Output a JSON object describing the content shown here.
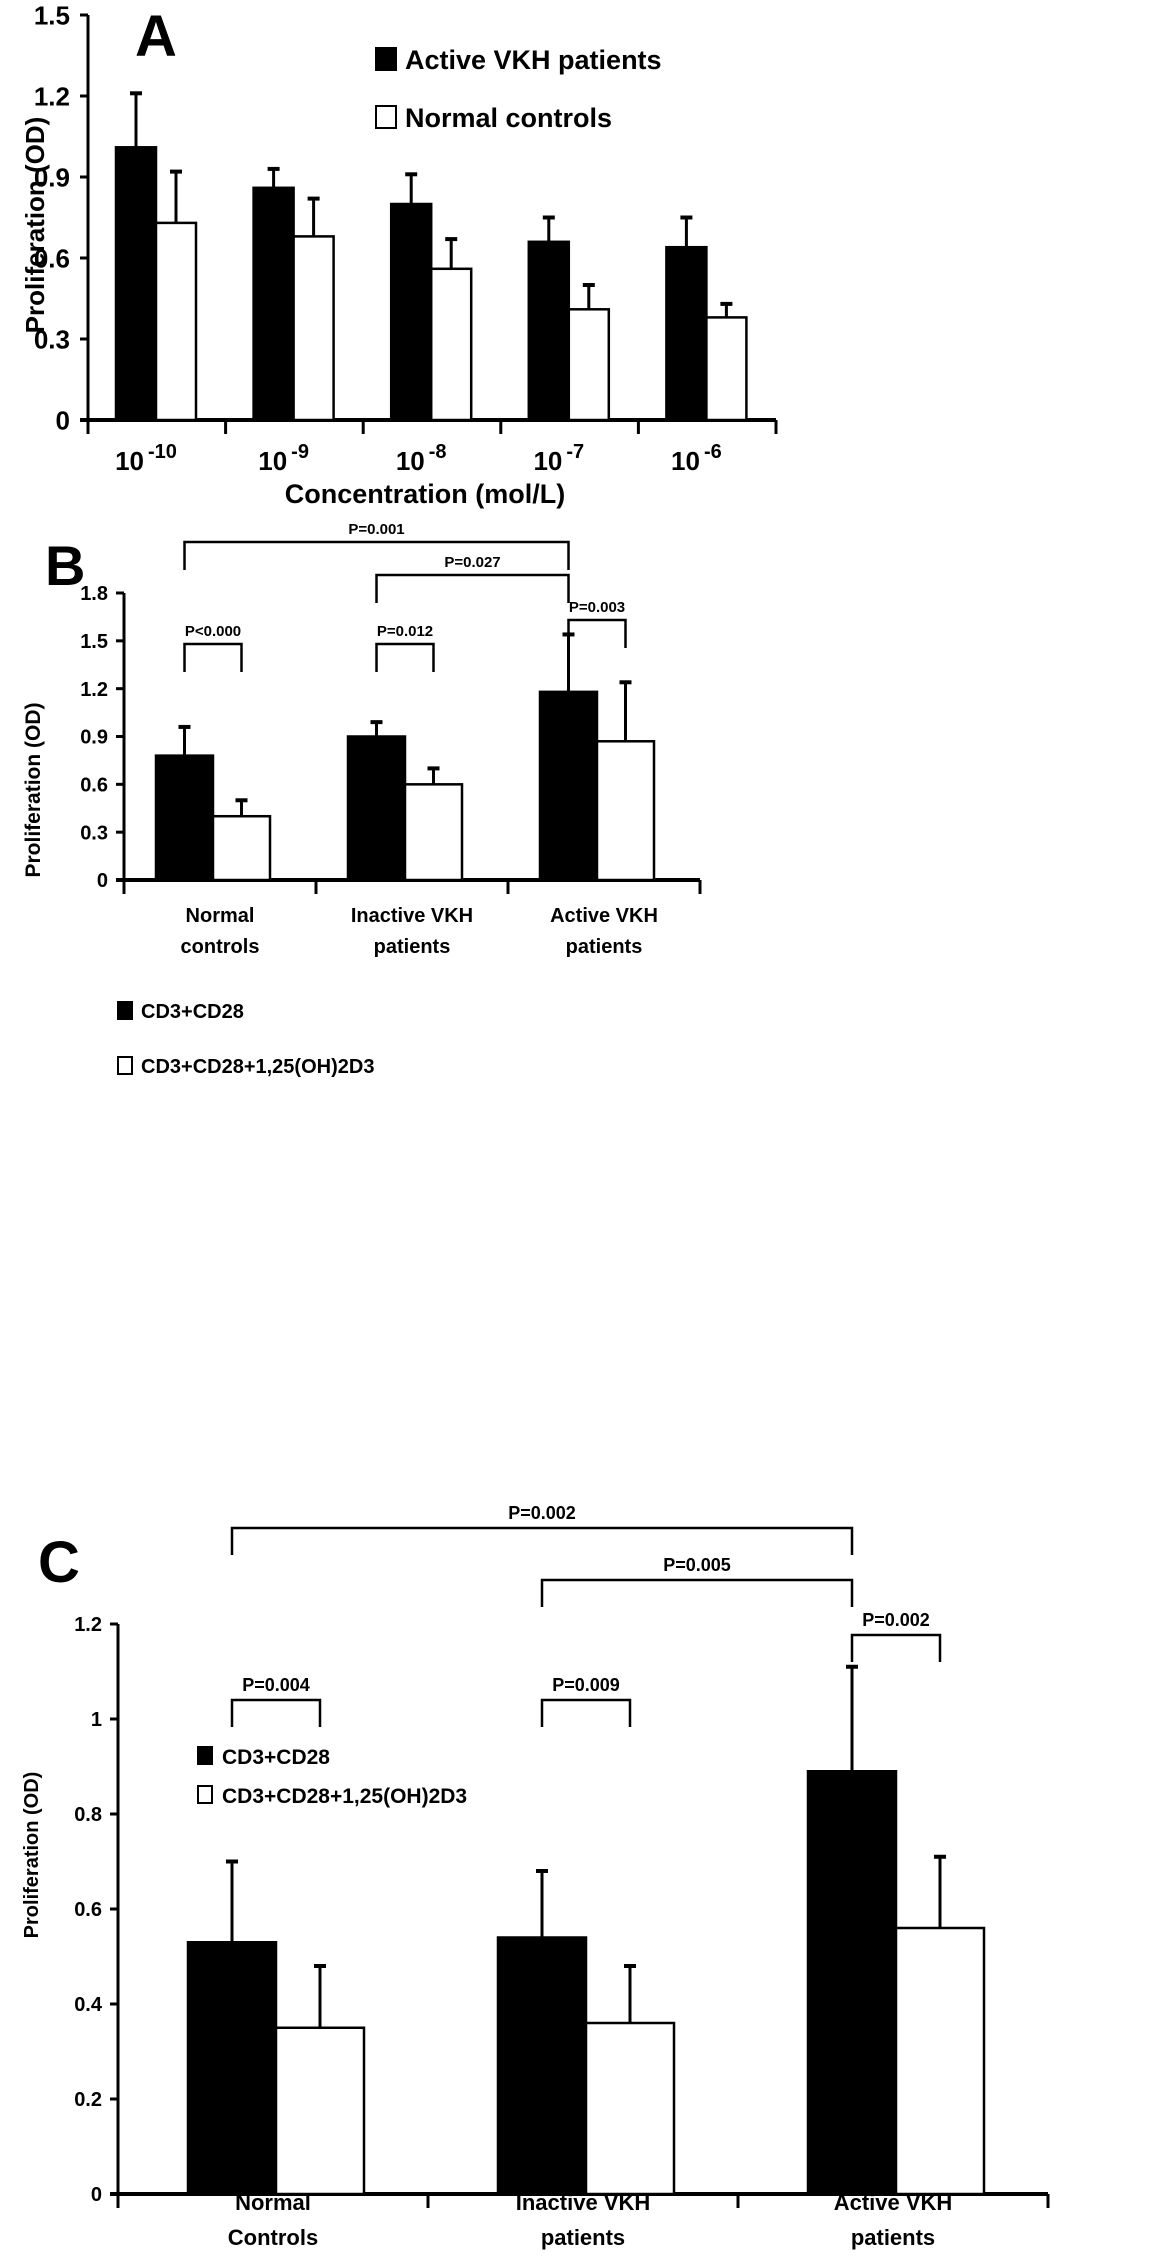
{
  "figure": {
    "panels": [
      "A",
      "B",
      "C"
    ]
  },
  "chart_data": [
    {
      "panel": "A",
      "type": "bar",
      "title": "",
      "xlabel": "Concentration (mol/L)",
      "ylabel": "Proliferation (OD)",
      "ylim": [
        0,
        1.5
      ],
      "yticks": [
        "0",
        "0.3",
        "0.6",
        "0.9",
        "1.2",
        "1.5"
      ],
      "ytick_values": [
        0,
        0.3,
        0.6,
        0.9,
        1.2,
        1.5
      ],
      "categories": [
        {
          "base": "10",
          "exp": "-10"
        },
        {
          "base": "10",
          "exp": "-9"
        },
        {
          "base": "10",
          "exp": "-8"
        },
        {
          "base": "10",
          "exp": "-7"
        },
        {
          "base": "10",
          "exp": "-6"
        }
      ],
      "series": [
        {
          "name": "Active VKH patients",
          "fill": "#000000",
          "values": [
            1.01,
            0.86,
            0.8,
            0.66,
            0.64
          ],
          "errors": [
            0.2,
            0.07,
            0.11,
            0.09,
            0.11
          ]
        },
        {
          "name": "Normal controls",
          "fill": "#ffffff",
          "values": [
            0.73,
            0.68,
            0.56,
            0.41,
            0.38
          ],
          "errors": [
            0.19,
            0.14,
            0.11,
            0.09,
            0.05
          ]
        }
      ],
      "legend_position": "top-right",
      "grid": false,
      "brackets": []
    },
    {
      "panel": "B",
      "type": "bar",
      "title": "",
      "xlabel": "",
      "ylabel": "Proliferation (OD)",
      "ylim": [
        0,
        1.8
      ],
      "yticks": [
        "0",
        "0.3",
        "0.6",
        "0.9",
        "1.2",
        "1.5",
        "1.8"
      ],
      "ytick_values": [
        0,
        0.3,
        0.6,
        0.9,
        1.2,
        1.5,
        1.8
      ],
      "categories": [
        {
          "line1": "Normal",
          "line2": "controls"
        },
        {
          "line1": "Inactive VKH",
          "line2": "patients"
        },
        {
          "line1": "Active VKH",
          "line2": "patients"
        }
      ],
      "series": [
        {
          "name": "CD3+CD28",
          "fill": "#000000",
          "values": [
            0.78,
            0.9,
            1.18
          ],
          "errors": [
            0.18,
            0.09,
            0.36
          ]
        },
        {
          "name": "CD3+CD28+1,25(OH)2D3",
          "fill": "#ffffff",
          "values": [
            0.4,
            0.6,
            0.87
          ],
          "errors": [
            0.1,
            0.1,
            0.37
          ]
        }
      ],
      "legend_position": "left-middle",
      "grid": false,
      "brackets": [
        {
          "label": "P=0.001",
          "from": [
            0,
            0
          ],
          "to": [
            2,
            0
          ],
          "level": 1
        },
        {
          "label": "P=0.027",
          "from": [
            1,
            0
          ],
          "to": [
            2,
            0
          ],
          "level": 2
        },
        {
          "label": "P<0.000",
          "from": [
            0,
            0
          ],
          "to": [
            0,
            1
          ],
          "level": 3
        },
        {
          "label": "P=0.012",
          "from": [
            1,
            0
          ],
          "to": [
            1,
            1
          ],
          "level": 3
        },
        {
          "label": "P=0.003",
          "from": [
            2,
            0
          ],
          "to": [
            2,
            1
          ],
          "level": 4
        }
      ]
    },
    {
      "panel": "C",
      "type": "bar",
      "title": "",
      "xlabel": "",
      "ylabel": "Proliferation (OD)",
      "ylim": [
        0,
        1.2
      ],
      "yticks": [
        "0",
        "0.2",
        "0.4",
        "0.6",
        "0.8",
        "1",
        "1.2"
      ],
      "ytick_values": [
        0,
        0.2,
        0.4,
        0.6,
        0.8,
        1.0,
        1.2
      ],
      "categories": [
        {
          "line1": "Normal",
          "line2": "Controls"
        },
        {
          "line1": "Inactive VKH",
          "line2": "patients"
        },
        {
          "line1": "Active VKH",
          "line2": "patients"
        }
      ],
      "series": [
        {
          "name": "CD3+CD28",
          "fill": "#000000",
          "values": [
            0.53,
            0.54,
            0.89
          ],
          "errors": [
            0.17,
            0.14,
            0.22
          ]
        },
        {
          "name": "CD3+CD28+1,25(OH)2D3",
          "fill": "#ffffff",
          "values": [
            0.35,
            0.36,
            0.56
          ],
          "errors": [
            0.13,
            0.12,
            0.15
          ]
        }
      ],
      "legend_position": "left-middle",
      "grid": false,
      "brackets": [
        {
          "label": "P=0.002",
          "from": [
            0,
            0
          ],
          "to": [
            2,
            0
          ],
          "level": 1
        },
        {
          "label": "P=0.005",
          "from": [
            1,
            0
          ],
          "to": [
            2,
            0
          ],
          "level": 2
        },
        {
          "label": "P=0.004",
          "from": [
            0,
            0
          ],
          "to": [
            0,
            1
          ],
          "level": 3
        },
        {
          "label": "P=0.009",
          "from": [
            1,
            0
          ],
          "to": [
            1,
            1
          ],
          "level": 3
        },
        {
          "label": "P=0.002",
          "from": [
            2,
            0
          ],
          "to": [
            2,
            1
          ],
          "level": 4
        }
      ]
    }
  ]
}
